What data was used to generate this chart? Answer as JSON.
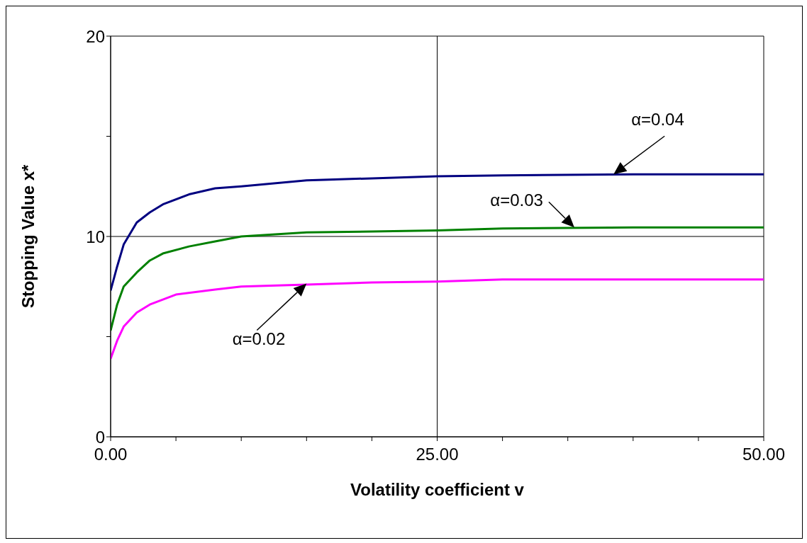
{
  "chart_data": {
    "type": "line",
    "xlabel": "Volatility coefficient v",
    "ylabel": "Stopping Value x*",
    "xlim": [
      0,
      50
    ],
    "ylim": [
      0,
      20
    ],
    "xticks": [
      {
        "value": 0,
        "label": "0.00"
      },
      {
        "value": 5,
        "label": null
      },
      {
        "value": 10,
        "label": null
      },
      {
        "value": 15,
        "label": null
      },
      {
        "value": 20,
        "label": null
      },
      {
        "value": 25,
        "label": "25.00"
      },
      {
        "value": 30,
        "label": null
      },
      {
        "value": 35,
        "label": null
      },
      {
        "value": 40,
        "label": null
      },
      {
        "value": 45,
        "label": null
      },
      {
        "value": 50,
        "label": "50.00"
      }
    ],
    "yticks": [
      0,
      {
        "value": 5,
        "label": null
      },
      10,
      {
        "value": 15,
        "label": null
      },
      20
    ],
    "grid": true,
    "marker": "none",
    "line_style": "solid",
    "series": [
      {
        "color": "#000080",
        "x": [
          0,
          0.5,
          1,
          2,
          3,
          4,
          6,
          8,
          10,
          15,
          20,
          25,
          30,
          40,
          50
        ],
        "values": [
          7.3,
          8.5,
          9.6,
          10.7,
          11.2,
          11.6,
          12.1,
          12.4,
          12.5,
          12.8,
          12.9,
          13.0,
          13.05,
          13.1,
          13.1
        ]
      },
      {
        "color": "#008000",
        "x": [
          0,
          0.5,
          1,
          2,
          3,
          4,
          6,
          8,
          10,
          15,
          20,
          25,
          30,
          40,
          50
        ],
        "values": [
          5.3,
          6.6,
          7.5,
          8.2,
          8.8,
          9.15,
          9.5,
          9.75,
          10.0,
          10.2,
          10.25,
          10.3,
          10.4,
          10.45,
          10.45
        ]
      },
      {
        "color": "#ff00ff",
        "x": [
          0,
          0.5,
          1,
          2,
          3,
          5,
          8,
          10,
          15,
          20,
          25,
          30,
          40,
          50
        ],
        "values": [
          3.9,
          4.8,
          5.5,
          6.2,
          6.6,
          7.1,
          7.35,
          7.5,
          7.6,
          7.7,
          7.75,
          7.85,
          7.85,
          7.85
        ]
      }
    ],
    "annotations": [
      {
        "text": "α=0.04",
        "x": 38.5,
        "y": 13.1
      },
      {
        "text": "α=0.03",
        "x": 35.5,
        "y": 10.45
      },
      {
        "text": "α=0.02",
        "x": 15,
        "y": 7.65
      }
    ]
  }
}
